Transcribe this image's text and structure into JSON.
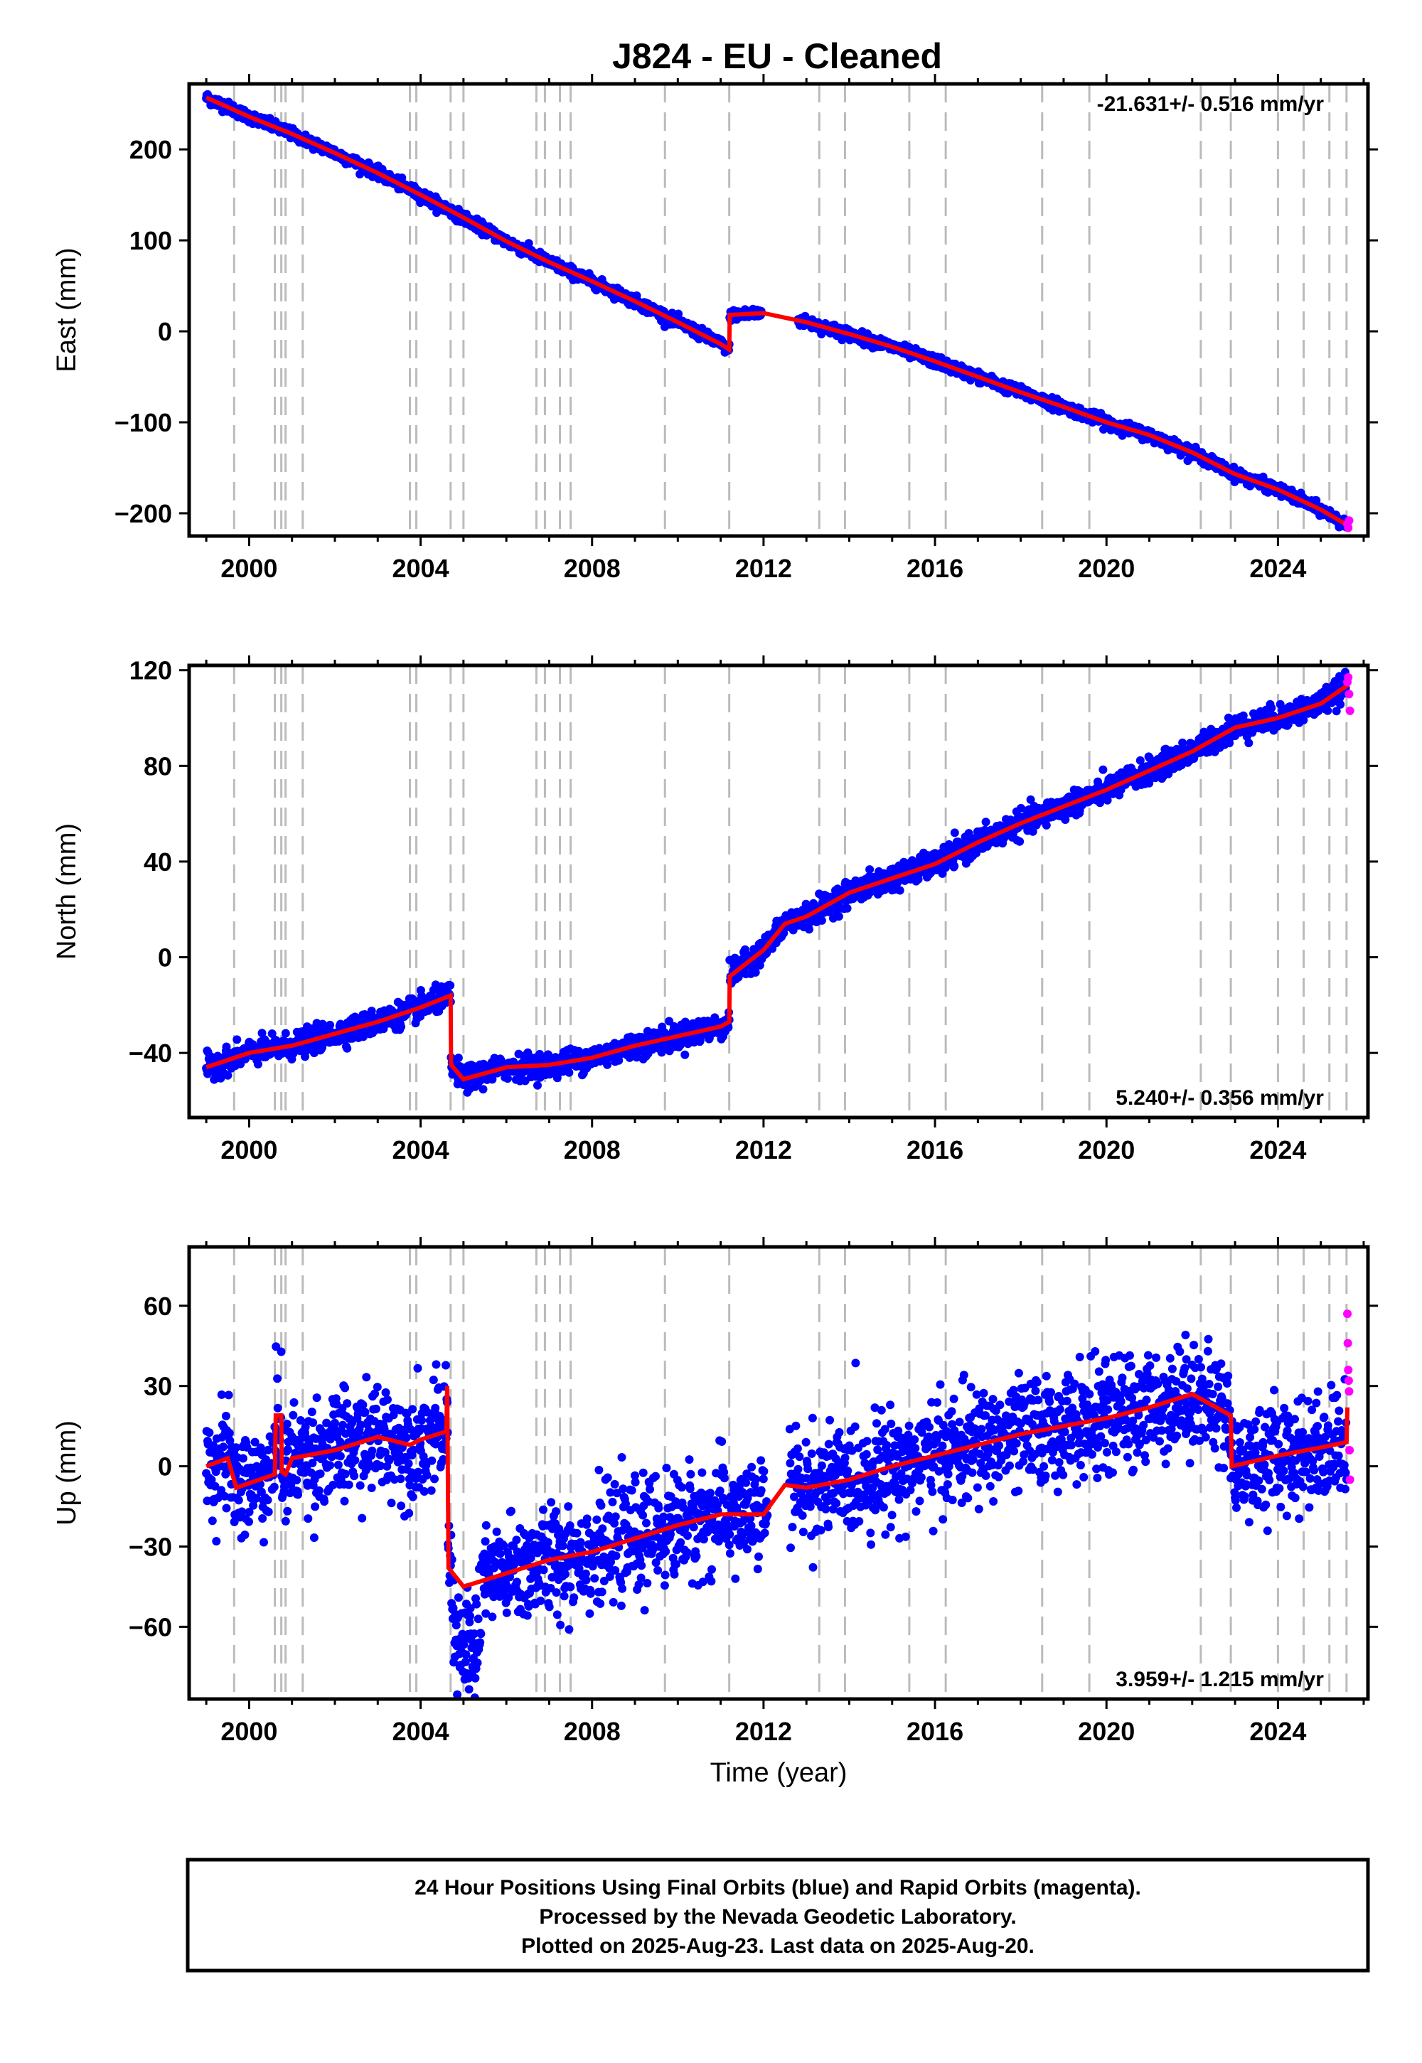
{
  "title": "J824  - EU - Cleaned",
  "colors": {
    "final_orbits": "#0000ff",
    "rapid_orbits": "#ff00ff",
    "model": "#ff0000",
    "event_lines": "#bbbbbb",
    "frame": "#000000"
  },
  "chart_data": [
    {
      "type": "scatter",
      "component": "east",
      "ylabel": "East (mm)",
      "xlabel": "",
      "rate_label": "-21.631+/- 0.516 mm/yr",
      "rate_position": "top-right",
      "xlim": [
        1998.6,
        2026.1
      ],
      "ylim": [
        -225,
        272
      ],
      "xticks": [
        2000,
        2004,
        2008,
        2012,
        2016,
        2020,
        2024
      ],
      "xtick_labels": [
        "2000",
        "2004",
        "2008",
        "2012",
        "2016",
        "2020",
        "2024"
      ],
      "yticks": [
        -200,
        -100,
        0,
        100,
        200
      ],
      "ytick_labels": [
        "−200",
        "−100",
        "0",
        "100",
        "200"
      ],
      "event_lines": [
        1999.65,
        2000.6,
        2000.75,
        2000.85,
        2001.25,
        2003.75,
        2003.9,
        2004.7,
        2005.0,
        2006.7,
        2006.9,
        2007.25,
        2007.5,
        2009.7,
        2011.2,
        2013.3,
        2013.9,
        2015.4,
        2016.25,
        2018.5,
        2019.6,
        2022.2,
        2022.9,
        2024.0,
        2024.6,
        2025.2,
        2025.6
      ],
      "model_series": {
        "name": "model",
        "x": [
          1999.0,
          2000.0,
          2001.0,
          2002.0,
          2003.0,
          2004.0,
          2005.0,
          2006.0,
          2007.0,
          2008.0,
          2009.0,
          2010.0,
          2011.0,
          2011.2,
          2011.21,
          2012.0,
          2013.0,
          2014.0,
          2015.0,
          2016.0,
          2017.0,
          2018.0,
          2019.0,
          2020.0,
          2021.0,
          2022.0,
          2023.0,
          2024.0,
          2025.0,
          2025.65
        ],
        "y": [
          257,
          236,
          217,
          196,
          174,
          150,
          125,
          99,
          76,
          55,
          33,
          10,
          -14,
          -20,
          18,
          20,
          10,
          -3,
          -17,
          -33,
          -50,
          -67,
          -83,
          -100,
          -114,
          -133,
          -157,
          -174,
          -196,
          -214
        ]
      },
      "final_series": {
        "name": "Final Orbits",
        "x_start": 1999.0,
        "x_end": 2025.6,
        "scatter_mm": 3
      },
      "rapid_series": {
        "name": "Rapid Orbits",
        "x": [
          2025.62,
          2025.64,
          2025.66
        ],
        "y": [
          -212,
          -216,
          -208
        ]
      }
    },
    {
      "type": "scatter",
      "component": "north",
      "ylabel": "North (mm)",
      "xlabel": "",
      "rate_label": "5.240+/- 0.356 mm/yr",
      "rate_position": "bottom-right",
      "xlim": [
        1998.6,
        2026.1
      ],
      "ylim": [
        -67,
        122
      ],
      "xticks": [
        2000,
        2004,
        2008,
        2012,
        2016,
        2020,
        2024
      ],
      "xtick_labels": [
        "2000",
        "2004",
        "2008",
        "2012",
        "2016",
        "2020",
        "2024"
      ],
      "yticks": [
        -40,
        0,
        40,
        80,
        120
      ],
      "ytick_labels": [
        "−40",
        "0",
        "40",
        "80",
        "120"
      ],
      "event_lines": [
        1999.65,
        2000.6,
        2000.75,
        2000.85,
        2001.25,
        2003.75,
        2003.9,
        2004.7,
        2005.0,
        2006.7,
        2006.9,
        2007.25,
        2007.5,
        2009.7,
        2011.2,
        2013.3,
        2013.9,
        2015.4,
        2016.25,
        2018.5,
        2019.6,
        2022.2,
        2022.9,
        2024.0,
        2024.6,
        2025.2,
        2025.6
      ],
      "model_series": {
        "name": "model",
        "x": [
          1999.0,
          2000.0,
          2001.0,
          2002.0,
          2003.0,
          2004.0,
          2004.7,
          2004.71,
          2005.0,
          2006.0,
          2007.0,
          2008.0,
          2009.0,
          2010.0,
          2011.0,
          2011.2,
          2011.21,
          2012.0,
          2012.5,
          2013.0,
          2014.0,
          2015.0,
          2016.0,
          2017.0,
          2018.0,
          2019.0,
          2020.0,
          2021.0,
          2022.0,
          2023.0,
          2024.0,
          2025.0,
          2025.65
        ],
        "y": [
          -46,
          -40,
          -37,
          -32,
          -27,
          -21,
          -16,
          -45,
          -51,
          -46,
          -45,
          -42,
          -37,
          -33,
          -29,
          -27,
          -8,
          3,
          14,
          17,
          27,
          33,
          39,
          48,
          56,
          63,
          70,
          78,
          86,
          96,
          100,
          106,
          114
        ]
      },
      "final_series": {
        "name": "Final Orbits",
        "x_start": 1999.0,
        "x_end": 2025.6,
        "scatter_mm": 2.5
      },
      "rapid_series": {
        "name": "Rapid Orbits",
        "x": [
          2025.62,
          2025.64,
          2025.66,
          2025.68
        ],
        "y": [
          115,
          117,
          110,
          103
        ]
      }
    },
    {
      "type": "scatter",
      "component": "up",
      "ylabel": "Up (mm)",
      "xlabel": "Time (year)",
      "rate_label": "3.959+/- 1.215 mm/yr",
      "rate_position": "bottom-right",
      "xlim": [
        1998.6,
        2026.1
      ],
      "ylim": [
        -87,
        82
      ],
      "xticks": [
        2000,
        2004,
        2008,
        2012,
        2016,
        2020,
        2024
      ],
      "xtick_labels": [
        "2000",
        "2004",
        "2008",
        "2012",
        "2016",
        "2020",
        "2024"
      ],
      "yticks": [
        -60,
        -30,
        0,
        30,
        60
      ],
      "ytick_labels": [
        "−60",
        "−30",
        "0",
        "30",
        "60"
      ],
      "event_lines": [
        1999.65,
        2000.6,
        2000.75,
        2000.85,
        2001.25,
        2003.75,
        2003.9,
        2004.7,
        2005.0,
        2006.7,
        2006.9,
        2007.25,
        2007.5,
        2009.7,
        2011.2,
        2013.3,
        2013.9,
        2015.4,
        2016.25,
        2018.5,
        2019.6,
        2022.2,
        2022.9,
        2024.0,
        2024.6,
        2025.2,
        2025.6
      ],
      "model_series": {
        "name": "model",
        "x": [
          1999.0,
          1999.5,
          1999.7,
          2000.6,
          2000.62,
          2000.75,
          2000.76,
          2000.85,
          2001.0,
          2002.0,
          2003.0,
          2003.75,
          2004.0,
          2004.6,
          2004.62,
          2004.65,
          2005.0,
          2006.0,
          2007.0,
          2008.0,
          2009.0,
          2010.0,
          2011.0,
          2012.0,
          2012.5,
          2013.0,
          2014.0,
          2015.0,
          2016.0,
          2017.0,
          2018.0,
          2019.0,
          2020.0,
          2021.0,
          2022.0,
          2022.9,
          2022.92,
          2024.0,
          2025.0,
          2025.6,
          2025.62
        ],
        "y": [
          0,
          3,
          -8,
          -3,
          19,
          19,
          -2,
          -3,
          3,
          6,
          11,
          8,
          10,
          13,
          30,
          -38,
          -45,
          -40,
          -35,
          -32,
          -27,
          -22,
          -18,
          -18,
          -7,
          -8,
          -5,
          0,
          4,
          8,
          12,
          15,
          18,
          22,
          27,
          19,
          0,
          4,
          7,
          9,
          22
        ]
      },
      "final_series": {
        "name": "Final Orbits",
        "x_start": 1999.0,
        "x_end": 2025.6,
        "scatter_mm": 10
      },
      "rapid_series": {
        "name": "Rapid Orbits",
        "x": [
          2025.62,
          2025.63,
          2025.64,
          2025.65,
          2025.66,
          2025.67,
          2025.68
        ],
        "y": [
          57,
          46,
          36,
          32,
          28,
          6,
          -5
        ]
      }
    }
  ],
  "footer": {
    "line1": "24 Hour Positions Using Final Orbits (blue) and Rapid Orbits (magenta).",
    "line2": "Processed by the Nevada Geodetic Laboratory.",
    "line3": "Plotted on 2025-Aug-23. Last data on 2025-Aug-20."
  }
}
